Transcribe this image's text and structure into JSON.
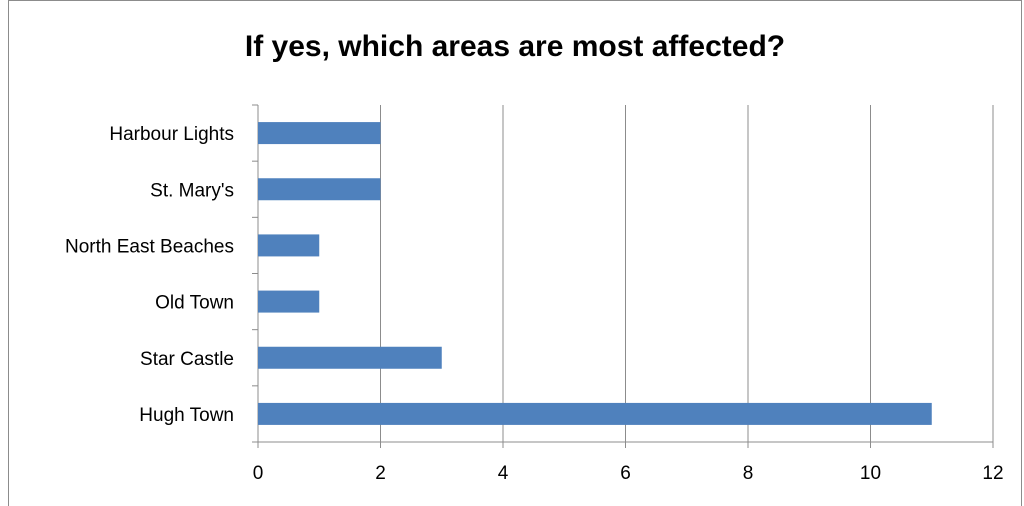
{
  "chart_data": {
    "type": "bar",
    "orientation": "horizontal",
    "title": "If yes, which areas are most affected?",
    "categories": [
      "Harbour Lights",
      "St. Mary's",
      "North East Beaches",
      "Old Town",
      "Star Castle",
      "Hugh Town"
    ],
    "values": [
      2,
      2,
      1,
      1,
      3,
      11
    ],
    "xlim": [
      0,
      12
    ],
    "xticks": [
      0,
      2,
      4,
      6,
      8,
      10,
      12
    ],
    "grid": "vertical",
    "legend": "none",
    "bar_color": "#4f81bd"
  }
}
